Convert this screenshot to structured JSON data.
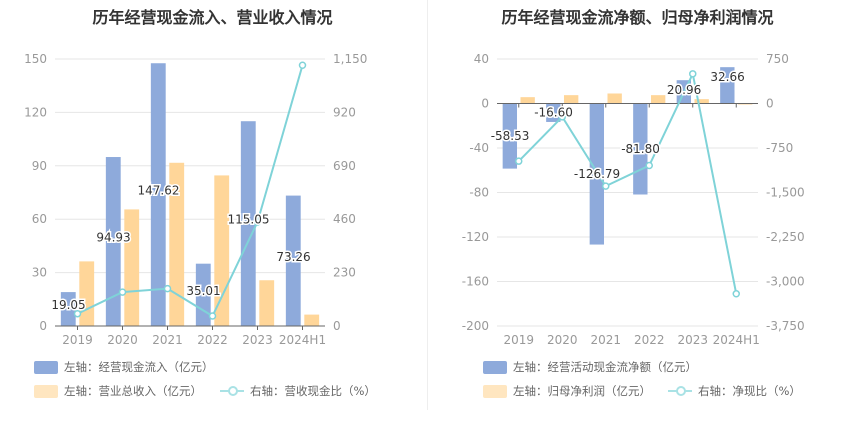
{
  "colors": {
    "bar1": "#8eaadb",
    "bar2": "#ffd699",
    "line": "#7fd3d8"
  },
  "chart_data": [
    {
      "type": "bar+line",
      "title": "历年经营现金流入、营业收入情况",
      "categories": [
        "2019",
        "2020",
        "2021",
        "2022",
        "2023",
        "2024H1"
      ],
      "left_axis": {
        "ylim": [
          0,
          150
        ],
        "ticks": [
          "0",
          "30",
          "60",
          "90",
          "120",
          "150"
        ],
        "tick_values": [
          0,
          30,
          60,
          90,
          120,
          150
        ]
      },
      "right_axis": {
        "ylim": [
          0,
          1150
        ],
        "ticks": [
          "0",
          "230",
          "460",
          "690",
          "920",
          "1,150"
        ],
        "tick_values": [
          0,
          230,
          460,
          690,
          920,
          1150
        ]
      },
      "series": [
        {
          "name": "左轴：经营现金流入（亿元）",
          "type": "bar",
          "axis": "left",
          "values": [
            19.05,
            94.93,
            147.62,
            35.01,
            115.05,
            73.26
          ],
          "labels": [
            "19.05",
            "94.93",
            "147.62",
            "35.01",
            "115.05",
            "73.26"
          ]
        },
        {
          "name": "左轴：营业总收入（亿元）",
          "type": "bar",
          "axis": "left",
          "values": [
            36.3,
            65.5,
            91.7,
            84.6,
            25.7,
            6.4
          ]
        },
        {
          "name": "右轴：营收现金比（%）",
          "type": "line",
          "axis": "right",
          "values": [
            53,
            146,
            161,
            43,
            448,
            1123
          ]
        }
      ],
      "grid": true,
      "legend": "bottom"
    },
    {
      "type": "bar+line",
      "title": "历年经营现金流净额、归母净利润情况",
      "categories": [
        "2019",
        "2020",
        "2021",
        "2022",
        "2023",
        "2024H1"
      ],
      "left_axis": {
        "ylim": [
          -200,
          40
        ],
        "ticks": [
          "-200",
          "-160",
          "-120",
          "-80",
          "-40",
          "0",
          "40"
        ],
        "tick_values": [
          -200,
          -160,
          -120,
          -80,
          -40,
          0,
          40
        ]
      },
      "right_axis": {
        "ylim": [
          -3750,
          750
        ],
        "ticks": [
          "-3,750",
          "-3,000",
          "-2,250",
          "-1,500",
          "-750",
          "0",
          "750"
        ],
        "tick_values": [
          -3750,
          -3000,
          -2250,
          -1500,
          -750,
          0,
          750
        ]
      },
      "series": [
        {
          "name": "左轴：经营活动现金流净额（亿元）",
          "type": "bar",
          "axis": "left",
          "values": [
            -58.53,
            -16.6,
            -126.79,
            -81.8,
            20.96,
            32.66
          ],
          "labels": [
            "-58.53",
            "-16.60",
            "-126.79",
            "-81.80",
            "20.96",
            "32.66"
          ]
        },
        {
          "name": "左轴：归母净利润（亿元）",
          "type": "bar",
          "axis": "left",
          "values": [
            5.7,
            7.5,
            9.0,
            7.5,
            3.9,
            -0.5
          ]
        },
        {
          "name": "右轴：净现比（%）",
          "type": "line",
          "axis": "right",
          "values": [
            -972,
            -225,
            -1393,
            -1045,
            500,
            -3207
          ]
        }
      ],
      "grid": true,
      "legend": "bottom"
    }
  ]
}
